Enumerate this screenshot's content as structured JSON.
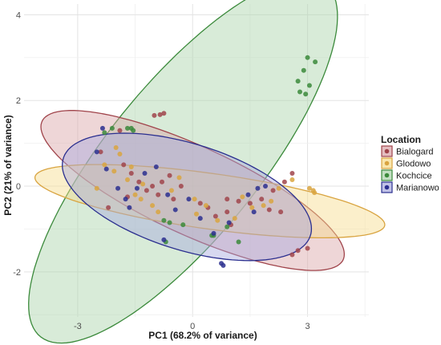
{
  "chart_data": {
    "type": "scatter",
    "xlabel": "PC1 (68.2% of variance)",
    "ylabel": "PC2 (21% of variance)",
    "xlim": [
      -4.4,
      4.6
    ],
    "ylim": [
      -3.05,
      4.25
    ],
    "x_ticks": [
      -3,
      0,
      3
    ],
    "x_tick_labels": [
      "-3",
      "0",
      "3"
    ],
    "y_ticks": [
      -2,
      0,
      2,
      4
    ],
    "y_tick_labels": [
      "-2",
      "0",
      "2",
      "4"
    ],
    "grid": true,
    "legend": {
      "title": "Location",
      "position": "right"
    },
    "series": [
      {
        "name": "Bialogard",
        "color": "#a0444b",
        "fill": "#d9a3a6",
        "ellipse": {
          "cx": 0.0,
          "cy": -0.1,
          "rx": 4.25,
          "ry": 1.05,
          "angle_deg": -22
        },
        "points": [
          [
            -1.0,
            1.65
          ],
          [
            -0.85,
            1.67
          ],
          [
            -0.75,
            1.7
          ],
          [
            -1.9,
            1.3
          ],
          [
            -2.4,
            0.8
          ],
          [
            -1.8,
            0.5
          ],
          [
            -1.6,
            0.3
          ],
          [
            -1.4,
            0.1
          ],
          [
            -1.2,
            -0.1
          ],
          [
            -1.05,
            0.0
          ],
          [
            -0.9,
            -0.2
          ],
          [
            -0.8,
            0.1
          ],
          [
            -0.6,
            0.25
          ],
          [
            -0.5,
            -0.3
          ],
          [
            -0.3,
            0.0
          ],
          [
            0.2,
            -0.4
          ],
          [
            0.4,
            -0.5
          ],
          [
            0.6,
            -0.7
          ],
          [
            0.9,
            -0.6
          ],
          [
            1.2,
            -0.35
          ],
          [
            1.5,
            -0.4
          ],
          [
            1.8,
            -0.3
          ],
          [
            2.1,
            -0.1
          ],
          [
            2.4,
            0.1
          ],
          [
            2.6,
            0.3
          ],
          [
            2.3,
            -0.6
          ],
          [
            2.0,
            -0.55
          ],
          [
            1.0,
            -0.9
          ],
          [
            2.6,
            -1.6
          ],
          [
            2.75,
            -1.5
          ],
          [
            3.0,
            -1.45
          ],
          [
            -2.2,
            -0.5
          ],
          [
            -1.7,
            -0.25
          ],
          [
            0.9,
            -0.3
          ]
        ]
      },
      {
        "name": "Glodowo",
        "color": "#d9a440",
        "fill": "#f7dc8c",
        "ellipse": {
          "cx": 0.45,
          "cy": -0.35,
          "rx": 4.6,
          "ry": 0.65,
          "angle_deg": -7
        },
        "points": [
          [
            -2.0,
            0.9
          ],
          [
            -1.9,
            0.75
          ],
          [
            -2.3,
            0.5
          ],
          [
            -2.05,
            0.35
          ],
          [
            -1.6,
            0.45
          ],
          [
            -1.7,
            0.15
          ],
          [
            -1.5,
            -0.2
          ],
          [
            -1.3,
            0.05
          ],
          [
            -1.35,
            -0.3
          ],
          [
            -1.05,
            -0.45
          ],
          [
            -0.9,
            -0.6
          ],
          [
            -0.55,
            -0.1
          ],
          [
            -0.35,
            0.2
          ],
          [
            0.05,
            -0.3
          ],
          [
            0.35,
            -0.45
          ],
          [
            0.65,
            -0.8
          ],
          [
            1.1,
            -0.75
          ],
          [
            1.3,
            -0.25
          ],
          [
            1.55,
            -0.5
          ],
          [
            1.85,
            -0.45
          ],
          [
            2.05,
            -0.35
          ],
          [
            2.25,
            -0.05
          ],
          [
            2.6,
            0.15
          ],
          [
            3.05,
            -0.05
          ],
          [
            3.15,
            -0.1
          ],
          [
            3.18,
            -0.15
          ],
          [
            -2.5,
            -0.05
          ],
          [
            0.1,
            -0.65
          ]
        ]
      },
      {
        "name": "Kochcice",
        "color": "#3b8a3b",
        "fill": "#a9d2a9",
        "ellipse": {
          "cx": -0.25,
          "cy": 0.6,
          "rx": 5.55,
          "ry": 1.9,
          "angle_deg": 47
        },
        "points": [
          [
            3.0,
            3.0
          ],
          [
            3.2,
            2.9
          ],
          [
            2.9,
            2.7
          ],
          [
            2.75,
            2.45
          ],
          [
            3.05,
            2.35
          ],
          [
            2.8,
            2.2
          ],
          [
            2.95,
            2.15
          ],
          [
            -2.1,
            1.35
          ],
          [
            -1.7,
            1.35
          ],
          [
            -1.6,
            1.35
          ],
          [
            -1.55,
            1.3
          ],
          [
            -2.3,
            1.25
          ],
          [
            -0.75,
            -0.8
          ],
          [
            -0.6,
            -0.85
          ],
          [
            -0.25,
            -0.9
          ],
          [
            0.9,
            -0.95
          ],
          [
            0.55,
            -1.15
          ],
          [
            -0.7,
            -1.3
          ],
          [
            0.5,
            -1.15
          ],
          [
            1.2,
            -1.3
          ]
        ]
      },
      {
        "name": "Marianowo",
        "color": "#2b2f8f",
        "fill": "#a6a8de",
        "ellipse": {
          "cx": -0.15,
          "cy": -0.25,
          "rx": 3.35,
          "ry": 1.25,
          "angle_deg": -15
        },
        "points": [
          [
            -2.5,
            0.8
          ],
          [
            -2.25,
            0.4
          ],
          [
            -1.95,
            -0.05
          ],
          [
            -1.75,
            -0.3
          ],
          [
            -1.65,
            -0.5
          ],
          [
            -1.45,
            -0.05
          ],
          [
            -1.25,
            0.3
          ],
          [
            -0.95,
            0.45
          ],
          [
            -0.65,
            -0.2
          ],
          [
            -0.45,
            -0.55
          ],
          [
            -0.1,
            -0.3
          ],
          [
            0.2,
            -0.75
          ],
          [
            0.55,
            -1.1
          ],
          [
            0.75,
            -1.8
          ],
          [
            0.8,
            -1.85
          ],
          [
            1.45,
            -0.2
          ],
          [
            1.7,
            -0.05
          ],
          [
            1.9,
            0.0
          ],
          [
            1.6,
            -0.6
          ],
          [
            -0.75,
            -1.25
          ],
          [
            -2.35,
            1.35
          ],
          [
            0.95,
            -0.85
          ]
        ]
      }
    ]
  }
}
